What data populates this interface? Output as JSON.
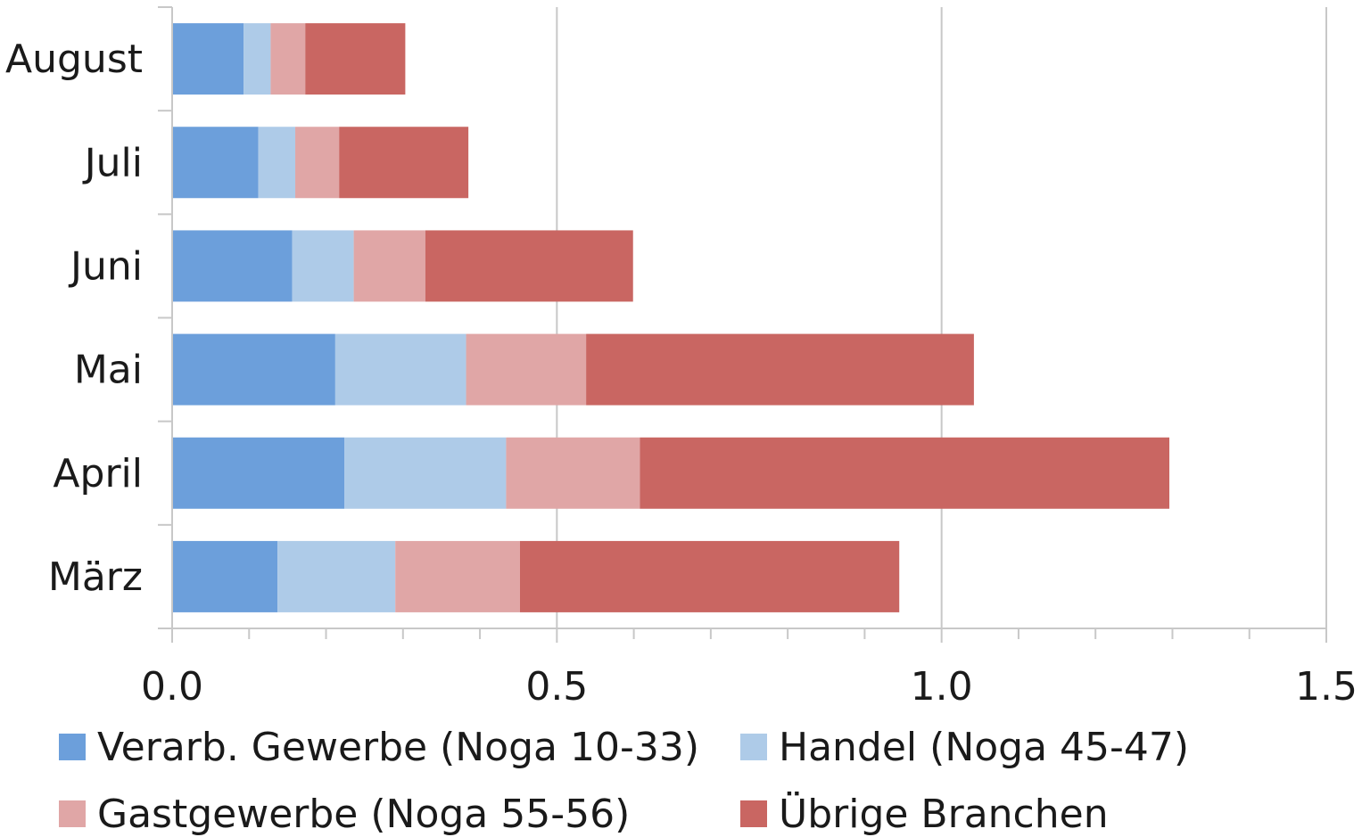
{
  "chart_data": {
    "type": "bar",
    "orientation": "horizontal",
    "stacked": true,
    "categories": [
      "August",
      "Juli",
      "Juni",
      "Mai",
      "April",
      "März"
    ],
    "series": [
      {
        "name": "Verarb. Gewerbe (Noga 10-33)",
        "color": "#6c9fdb",
        "values": [
          0.093,
          0.112,
          0.156,
          0.212,
          0.224,
          0.137
        ]
      },
      {
        "name": "Handel (Noga 45-47)",
        "color": "#aecbe8",
        "values": [
          0.035,
          0.048,
          0.08,
          0.17,
          0.21,
          0.153
        ]
      },
      {
        "name": "Gastgewerbe (Noga 55-56)",
        "color": "#e0a6a6",
        "values": [
          0.045,
          0.057,
          0.093,
          0.156,
          0.174,
          0.162
        ]
      },
      {
        "name": "Übrige Branchen",
        "color": "#c96662",
        "values": [
          0.13,
          0.168,
          0.27,
          0.504,
          0.688,
          0.493
        ]
      }
    ],
    "xlim": [
      0,
      1.5
    ],
    "xticks": [
      "0.0",
      "0.5",
      "1.0",
      "1.5"
    ],
    "xticks_values": [
      0,
      0.5,
      1.0,
      1.5
    ],
    "minor_tick_step": 0.1,
    "grid": "vertical major gridlines",
    "legend_position": "bottom",
    "title": "",
    "xlabel": "",
    "ylabel": ""
  }
}
